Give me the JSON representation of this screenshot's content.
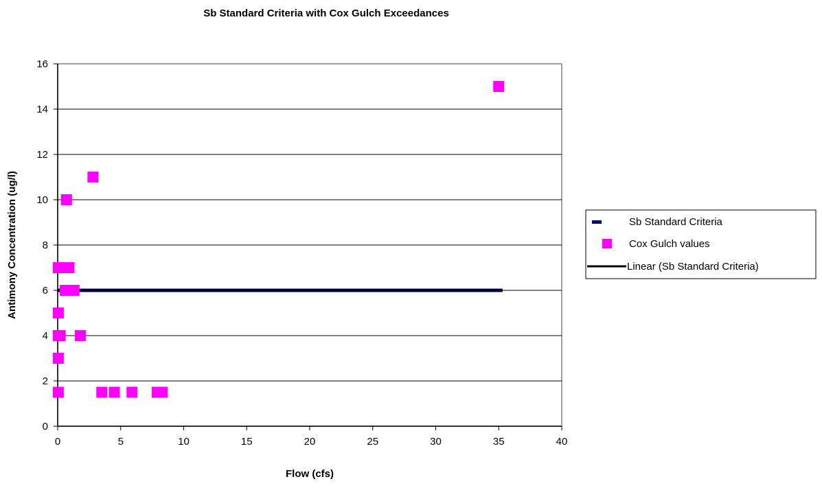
{
  "chart_data": {
    "type": "scatter",
    "title": "Sb Standard Criteria with Cox Gulch Exceedances",
    "xlabel": "Flow (cfs)",
    "ylabel": "Antimony Concentration (ug/l)",
    "xlim": [
      0,
      40
    ],
    "ylim": [
      0,
      16
    ],
    "x_ticks": [
      0,
      5,
      10,
      15,
      20,
      25,
      30,
      35,
      40
    ],
    "y_ticks": [
      0,
      2,
      4,
      6,
      8,
      10,
      12,
      14,
      16
    ],
    "grid": "horizontal",
    "legend_position": "right",
    "series": [
      {
        "name": "Sb Standard Criteria",
        "kind": "line",
        "color": "#000080",
        "points": [
          [
            0,
            6
          ],
          [
            35.3,
            6
          ]
        ]
      },
      {
        "name": "Cox Gulch values",
        "kind": "marker",
        "marker": "square",
        "color": "#FF00FF",
        "points": [
          [
            0.05,
            1.5
          ],
          [
            0.05,
            3
          ],
          [
            0.05,
            4
          ],
          [
            0.2,
            4
          ],
          [
            0.05,
            5
          ],
          [
            0.05,
            7
          ],
          [
            0.6,
            6
          ],
          [
            1.0,
            6
          ],
          [
            1.3,
            6
          ],
          [
            0.7,
            10
          ],
          [
            0.9,
            7
          ],
          [
            1.8,
            4
          ],
          [
            2.8,
            11
          ],
          [
            3.5,
            1.5
          ],
          [
            4.5,
            1.5
          ],
          [
            5.9,
            1.5
          ],
          [
            7.9,
            1.5
          ],
          [
            8.3,
            1.5
          ],
          [
            35.0,
            15
          ]
        ]
      },
      {
        "name": "Linear (Sb Standard Criteria)",
        "kind": "trendline",
        "color": "#000000",
        "points": [
          [
            0,
            6
          ],
          [
            35.3,
            6
          ]
        ]
      }
    ]
  }
}
